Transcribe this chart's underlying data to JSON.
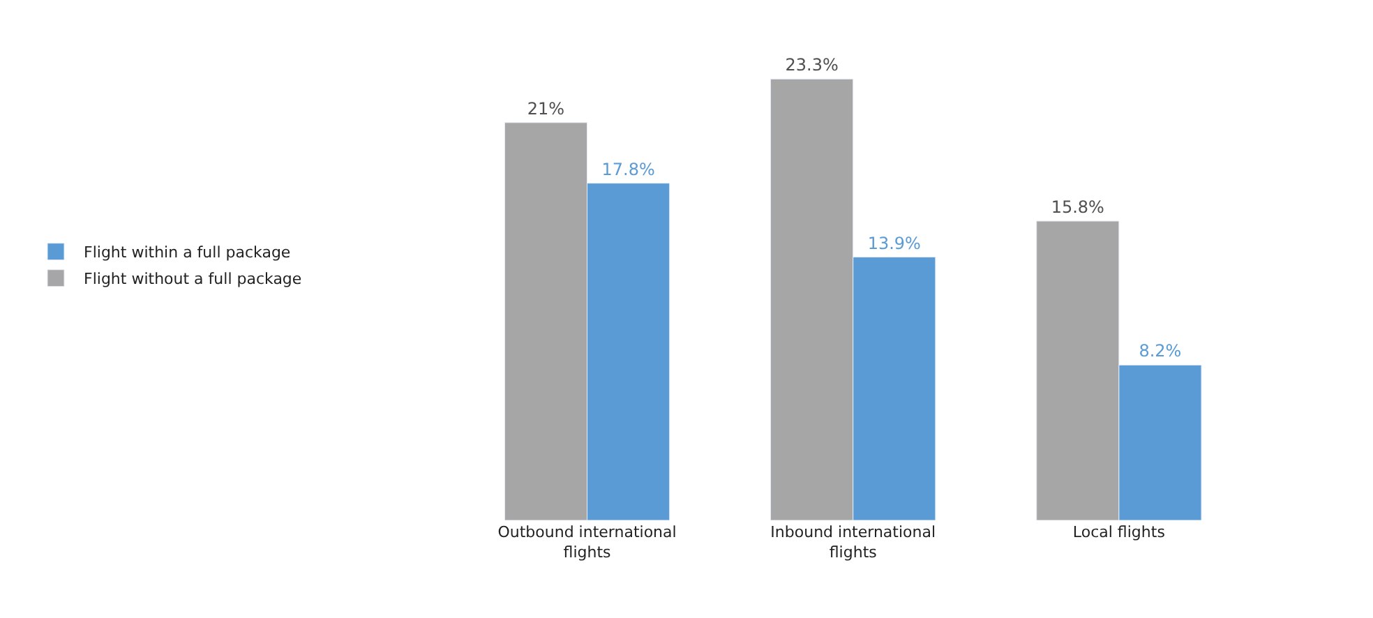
{
  "chart_data": {
    "type": "bar",
    "categories": [
      "Outbound international flights",
      "Inbound international flights",
      "Local flights"
    ],
    "series": [
      {
        "name": "Flight without a full package",
        "color": "#a6a6a6",
        "values": [
          21,
          23.3,
          15.8
        ],
        "value_labels": [
          "21%",
          "23.3%",
          "15.8%"
        ]
      },
      {
        "name": "Flight within a full package",
        "color": "#5b9bd5",
        "values": [
          17.8,
          13.9,
          8.2
        ],
        "value_labels": [
          "17.8%",
          "13.9%",
          "8.2%"
        ]
      }
    ],
    "legend": "left"
  }
}
